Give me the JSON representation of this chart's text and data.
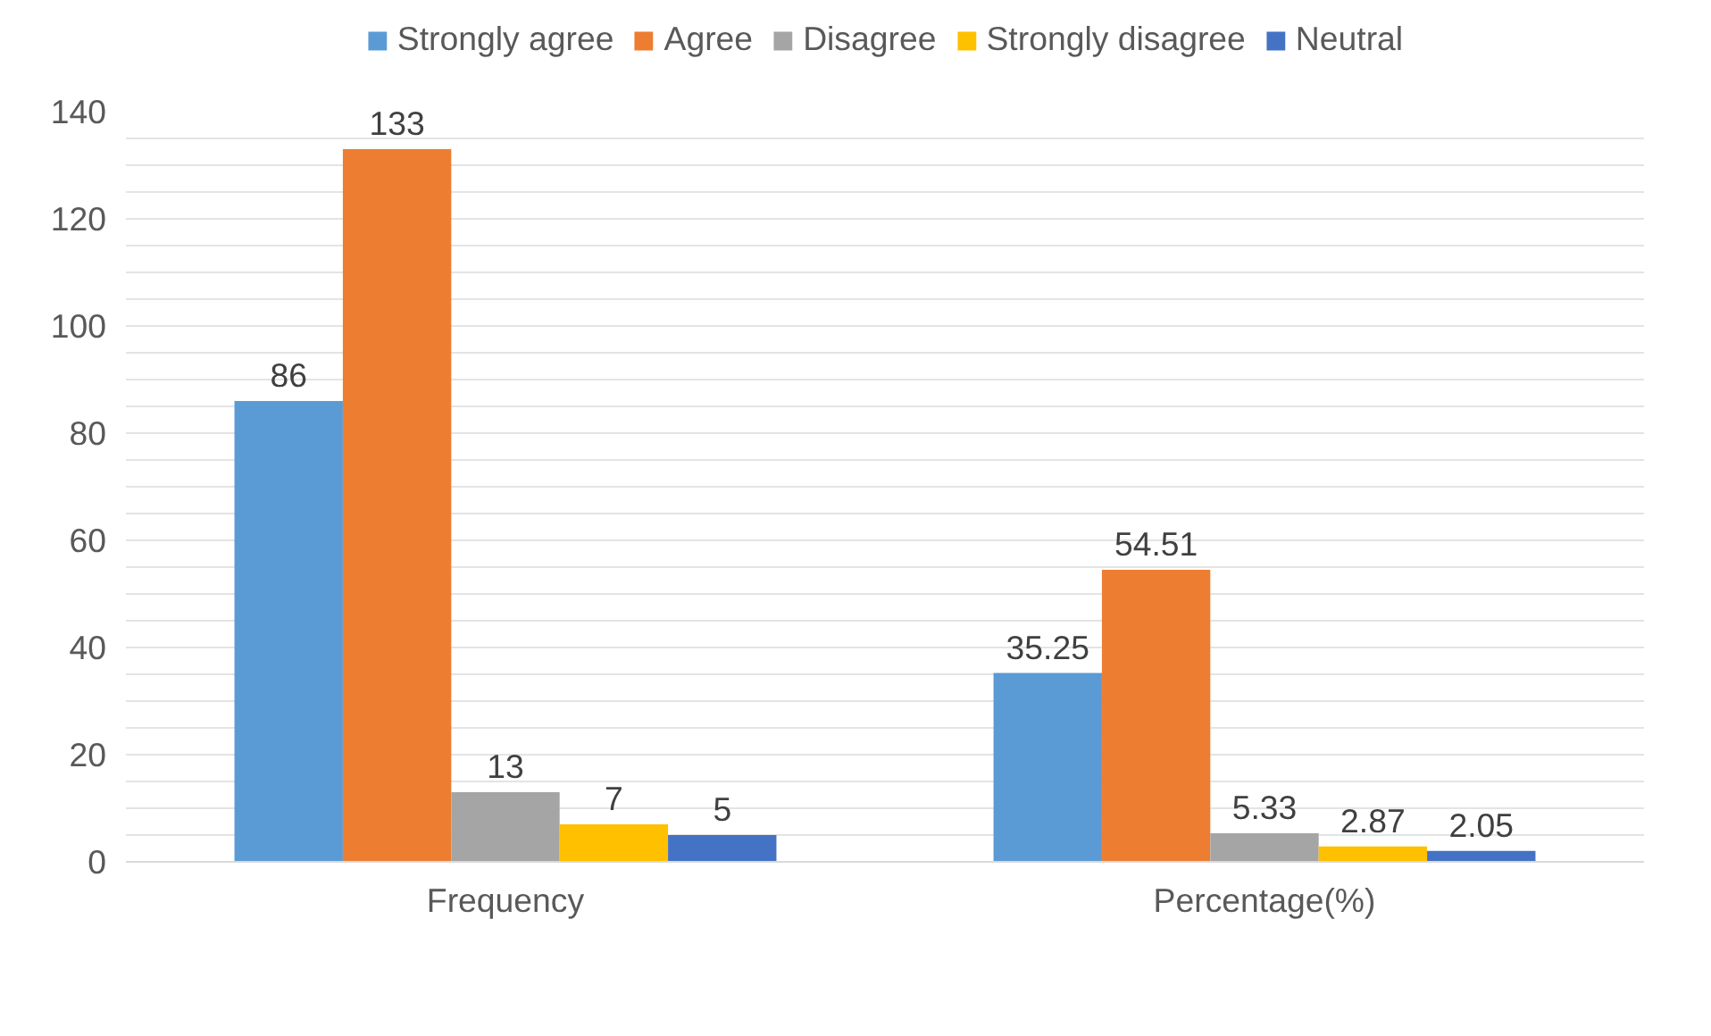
{
  "chart_data": {
    "type": "bar",
    "categories": [
      "Frequency",
      "Percentage(%)"
    ],
    "series": [
      {
        "name": "Strongly agree",
        "color": "#5b9bd5",
        "values": [
          86,
          35.25
        ]
      },
      {
        "name": "Agree",
        "color": "#ed7d31",
        "values": [
          133,
          54.51
        ]
      },
      {
        "name": "Disagree",
        "color": "#a5a5a5",
        "values": [
          13,
          5.33
        ]
      },
      {
        "name": "Strongly disagree",
        "color": "#ffc000",
        "values": [
          7,
          2.87
        ]
      },
      {
        "name": "Neutral",
        "color": "#4472c4",
        "values": [
          5,
          2.05
        ]
      }
    ],
    "ylim": [
      0,
      140
    ],
    "yticks": [
      0,
      {
        "value": 5,
        "label": null
      },
      {
        "value": 10,
        "label": null
      },
      {
        "value": 15,
        "label": null
      },
      20,
      {
        "value": 25,
        "label": null
      },
      {
        "value": 30,
        "label": null
      },
      {
        "value": 35,
        "label": null
      },
      40,
      {
        "value": 45,
        "label": null
      },
      {
        "value": 50,
        "label": null
      },
      {
        "value": 55,
        "label": null
      },
      60,
      {
        "value": 65,
        "label": null
      },
      {
        "value": 70,
        "label": null
      },
      {
        "value": 75,
        "label": null
      },
      80,
      {
        "value": 85,
        "label": null
      },
      {
        "value": 90,
        "label": null
      },
      {
        "value": 95,
        "label": null
      },
      100,
      {
        "value": 105,
        "label": null
      },
      {
        "value": 110,
        "label": null
      },
      {
        "value": 115,
        "label": null
      },
      120,
      {
        "value": 125,
        "label": null
      },
      {
        "value": 130,
        "label": null
      },
      {
        "value": 135,
        "label": null
      },
      140
    ],
    "grid": "y",
    "legend": "top",
    "data_labels": true
  }
}
